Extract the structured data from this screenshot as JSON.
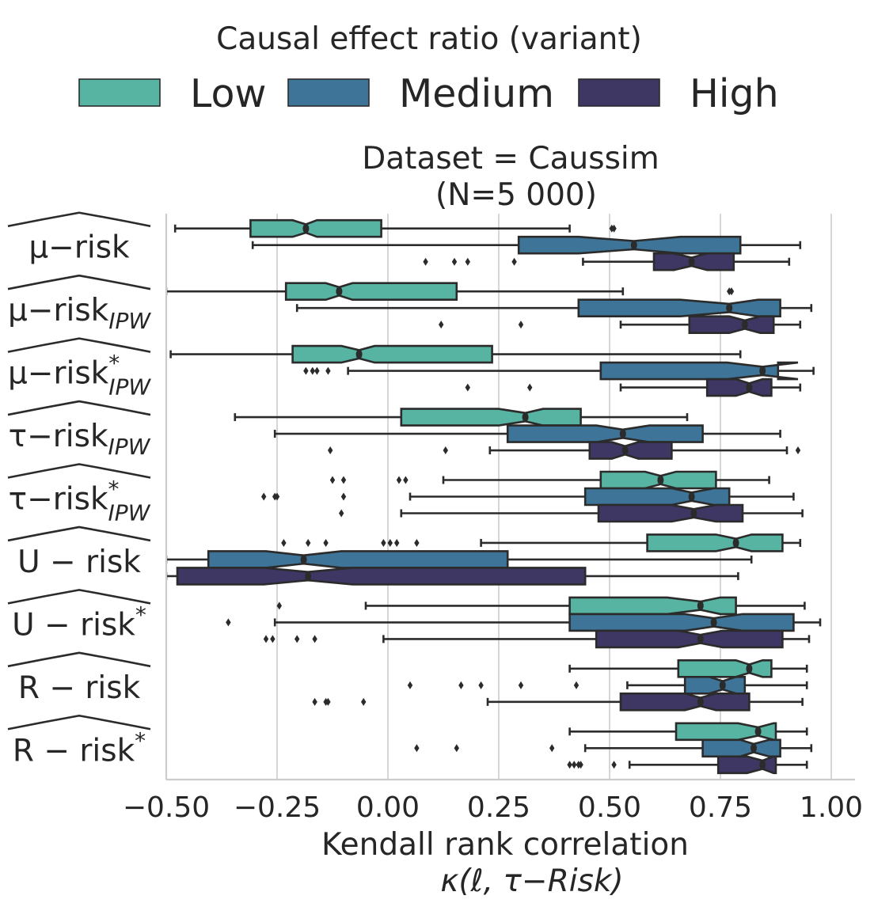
{
  "chart_data": {
    "type": "boxplot",
    "orientation": "horizontal",
    "notched": true,
    "title": "Dataset = Caussim",
    "subtitle": "(N=5 000)",
    "xlabel": "Kendall rank correlation",
    "xlabel2": "κ(ℓ, τ−Risk)",
    "xlim": [
      -0.5,
      1.05
    ],
    "xticks": [
      -0.5,
      -0.25,
      0.0,
      0.25,
      0.5,
      0.75,
      1.0
    ],
    "xtick_labels": [
      "−0.50",
      "−0.25",
      "0.00",
      "0.25",
      "0.50",
      "0.75",
      "1.00"
    ],
    "grid": "vertical",
    "legend": {
      "title": "Causal effect ratio (variant)",
      "placement": "top",
      "entries": [
        {
          "label": "Low",
          "color": "#57b3a2"
        },
        {
          "label": "Medium",
          "color": "#3e7497"
        },
        {
          "label": "High",
          "color": "#3e3764"
        }
      ]
    },
    "categories": [
      {
        "base": "μ−risk",
        "sub": "",
        "sup": ""
      },
      {
        "base": "μ−risk",
        "sub": "IPW",
        "sup": ""
      },
      {
        "base": "μ−risk",
        "sub": "IPW",
        "sup": "*"
      },
      {
        "base": "τ−risk",
        "sub": "IPW",
        "sup": ""
      },
      {
        "base": "τ−risk",
        "sub": "IPW",
        "sup": "*"
      },
      {
        "base": "U − risk",
        "sub": "",
        "sup": ""
      },
      {
        "base": "U − risk",
        "sub": "",
        "sup": "*"
      },
      {
        "base": "R − risk",
        "sub": "",
        "sup": ""
      },
      {
        "base": "R − risk",
        "sub": "",
        "sup": "*"
      }
    ],
    "series": [
      {
        "name": "Low",
        "boxes": [
          {
            "whislo": -0.48,
            "q1": -0.31,
            "med": -0.185,
            "q3": -0.015,
            "whishi": 0.41,
            "notch": [
              -0.215,
              -0.16
            ],
            "fliers": [
              0.505,
              0.51
            ]
          },
          {
            "whislo": -0.5,
            "q1": -0.23,
            "med": -0.11,
            "q3": 0.155,
            "whishi": 0.53,
            "notch": [
              -0.14,
              -0.08
            ],
            "fliers": [
              0.77,
              0.775
            ]
          },
          {
            "whislo": -0.49,
            "q1": -0.215,
            "med": -0.065,
            "q3": 0.235,
            "whishi": 0.795,
            "notch": [
              -0.105,
              -0.03
            ],
            "fliers": []
          },
          {
            "whislo": -0.345,
            "q1": 0.03,
            "med": 0.31,
            "q3": 0.435,
            "whishi": 0.675,
            "notch": [
              0.25,
              0.35
            ],
            "fliers": []
          },
          {
            "whislo": 0.125,
            "q1": 0.48,
            "med": 0.615,
            "q3": 0.74,
            "whishi": 0.86,
            "notch": [
              0.58,
              0.65
            ],
            "fliers": [
              -0.125,
              -0.1,
              0.025,
              0.04
            ]
          },
          {
            "whislo": 0.21,
            "q1": 0.585,
            "med": 0.785,
            "q3": 0.89,
            "whishi": 0.93,
            "notch": [
              0.74,
              0.82
            ],
            "fliers": [
              -0.235,
              -0.18,
              -0.14,
              -0.01,
              0.005,
              0.02,
              0.065
            ]
          },
          {
            "whislo": -0.05,
            "q1": 0.41,
            "med": 0.705,
            "q3": 0.785,
            "whishi": 0.94,
            "notch": [
              0.63,
              0.75
            ],
            "fliers": [
              -0.245
            ]
          },
          {
            "whislo": 0.41,
            "q1": 0.655,
            "med": 0.815,
            "q3": 0.865,
            "whishi": 0.945,
            "notch": [
              0.785,
              0.845
            ],
            "fliers": []
          },
          {
            "whislo": 0.41,
            "q1": 0.65,
            "med": 0.835,
            "q3": 0.875,
            "whishi": 0.945,
            "notch": [
              0.79,
              0.87
            ],
            "fliers": []
          }
        ]
      },
      {
        "name": "Medium",
        "boxes": [
          {
            "whislo": -0.305,
            "q1": 0.295,
            "med": 0.555,
            "q3": 0.795,
            "whishi": 0.93,
            "notch": [
              0.43,
              0.66
            ],
            "fliers": []
          },
          {
            "whislo": -0.205,
            "q1": 0.43,
            "med": 0.77,
            "q3": 0.885,
            "whishi": 0.955,
            "notch": [
              0.66,
              0.835
            ],
            "fliers": []
          },
          {
            "whislo": -0.09,
            "q1": 0.48,
            "med": 0.845,
            "q3": 0.88,
            "whishi": 0.96,
            "notch": [
              0.765,
              0.925
            ],
            "fliers": [
              -0.185,
              -0.17,
              -0.16,
              -0.135
            ]
          },
          {
            "whislo": -0.255,
            "q1": 0.27,
            "med": 0.53,
            "q3": 0.71,
            "whishi": 0.885,
            "notch": [
              0.47,
              0.59
            ],
            "fliers": []
          },
          {
            "whislo": 0.05,
            "q1": 0.445,
            "med": 0.685,
            "q3": 0.77,
            "whishi": 0.915,
            "notch": [
              0.64,
              0.735
            ],
            "fliers": [
              -0.28,
              -0.255,
              -0.25,
              -0.1
            ]
          },
          {
            "whislo": -0.5,
            "q1": -0.405,
            "med": -0.19,
            "q3": 0.27,
            "whishi": 0.82,
            "notch": [
              -0.275,
              -0.105
            ],
            "fliers": []
          },
          {
            "whislo": -0.255,
            "q1": 0.41,
            "med": 0.735,
            "q3": 0.915,
            "whishi": 0.975,
            "notch": [
              0.67,
              0.8
            ],
            "fliers": [
              -0.36
            ]
          },
          {
            "whislo": 0.54,
            "q1": 0.67,
            "med": 0.755,
            "q3": 0.805,
            "whishi": 0.945,
            "notch": [
              0.725,
              0.785
            ],
            "fliers": [
              0.05,
              0.165,
              0.21,
              0.3,
              0.425
            ]
          },
          {
            "whislo": 0.445,
            "q1": 0.71,
            "med": 0.825,
            "q3": 0.885,
            "whishi": 0.955,
            "notch": [
              0.795,
              0.86
            ],
            "fliers": [
              0.065,
              0.155,
              0.37
            ]
          }
        ]
      },
      {
        "name": "High",
        "boxes": [
          {
            "whislo": 0.44,
            "q1": 0.6,
            "med": 0.685,
            "q3": 0.78,
            "whishi": 0.905,
            "notch": [
              0.645,
              0.72
            ],
            "fliers": [
              0.085,
              0.15,
              0.18,
              0.285
            ]
          },
          {
            "whislo": 0.525,
            "q1": 0.68,
            "med": 0.805,
            "q3": 0.87,
            "whishi": 0.93,
            "notch": [
              0.77,
              0.84
            ],
            "fliers": [
              0.12,
              0.3
            ]
          },
          {
            "whislo": 0.525,
            "q1": 0.72,
            "med": 0.815,
            "q3": 0.865,
            "whishi": 0.93,
            "notch": [
              0.785,
              0.845
            ],
            "fliers": [
              0.18,
              0.32
            ]
          },
          {
            "whislo": 0.23,
            "q1": 0.455,
            "med": 0.535,
            "q3": 0.64,
            "whishi": 0.9,
            "notch": [
              0.505,
              0.565
            ],
            "fliers": [
              -0.13,
              0.13,
              0.925
            ]
          },
          {
            "whislo": 0.03,
            "q1": 0.475,
            "med": 0.69,
            "q3": 0.8,
            "whishi": 0.935,
            "notch": [
              0.64,
              0.74
            ],
            "fliers": [
              -0.105
            ]
          },
          {
            "whislo": -0.5,
            "q1": -0.475,
            "med": -0.18,
            "q3": 0.445,
            "whishi": 0.79,
            "notch": [
              -0.28,
              -0.08
            ],
            "fliers": []
          },
          {
            "whislo": -0.01,
            "q1": 0.47,
            "med": 0.705,
            "q3": 0.89,
            "whishi": 0.95,
            "notch": [
              0.655,
              0.755
            ],
            "fliers": [
              -0.275,
              -0.26,
              -0.205,
              -0.165
            ]
          },
          {
            "whislo": 0.225,
            "q1": 0.525,
            "med": 0.705,
            "q3": 0.815,
            "whishi": 0.935,
            "notch": [
              0.67,
              0.74
            ],
            "fliers": [
              -0.165,
              -0.14,
              -0.135,
              -0.055
            ]
          },
          {
            "whislo": 0.545,
            "q1": 0.745,
            "med": 0.845,
            "q3": 0.875,
            "whishi": 0.945,
            "notch": [
              0.81,
              0.87
            ],
            "fliers": [
              0.41,
              0.42,
              0.43,
              0.435,
              0.51
            ]
          }
        ]
      }
    ]
  }
}
